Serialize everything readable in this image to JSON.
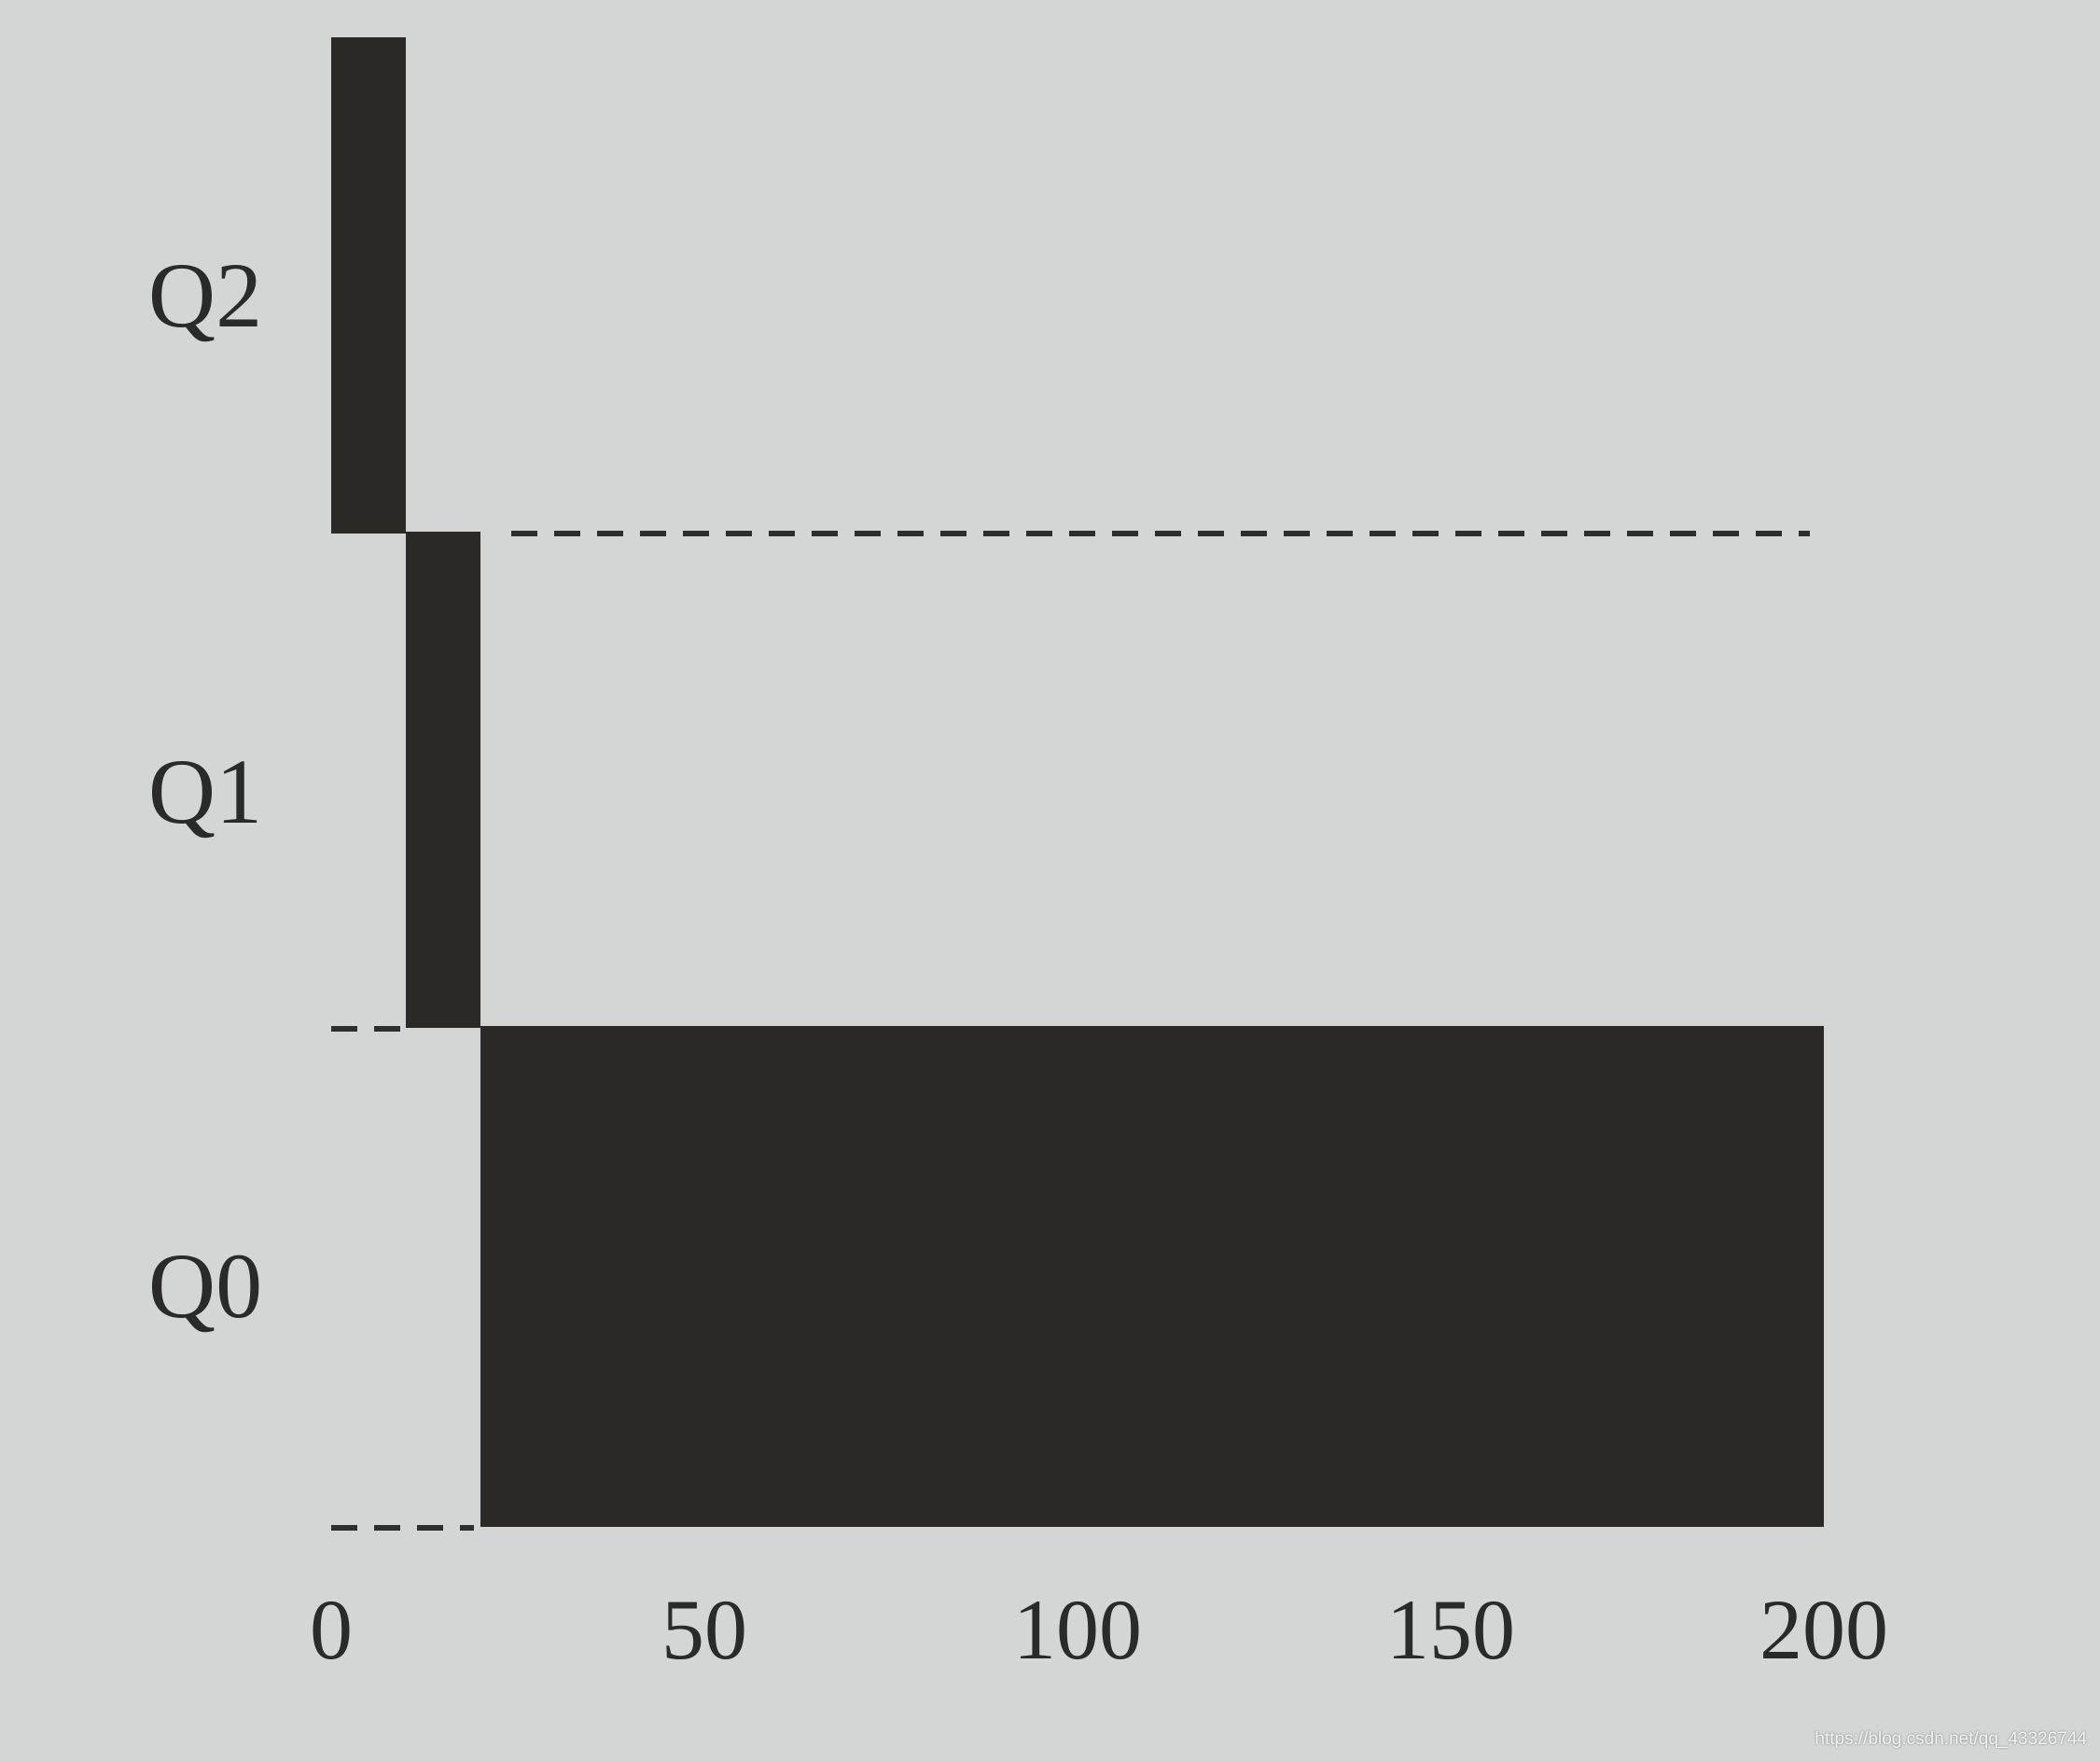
{
  "chart_data": {
    "type": "bar",
    "orientation": "horizontal",
    "stacked_timeline": true,
    "x": {
      "ticks": [
        0,
        50,
        100,
        150,
        200
      ],
      "range": [
        0,
        200
      ]
    },
    "lanes": [
      {
        "label": "Q2",
        "start": 0,
        "end": 10
      },
      {
        "label": "Q1",
        "start": 10,
        "end": 20
      },
      {
        "label": "Q0",
        "start": 20,
        "end": 200
      }
    ],
    "grid": false,
    "legend": "none",
    "colors": {
      "bar": "#2a2926",
      "background": "#d4d5d5",
      "guide": "#2e2e2e"
    }
  },
  "watermark": "https://blog.csdn.net/qq_43326744"
}
